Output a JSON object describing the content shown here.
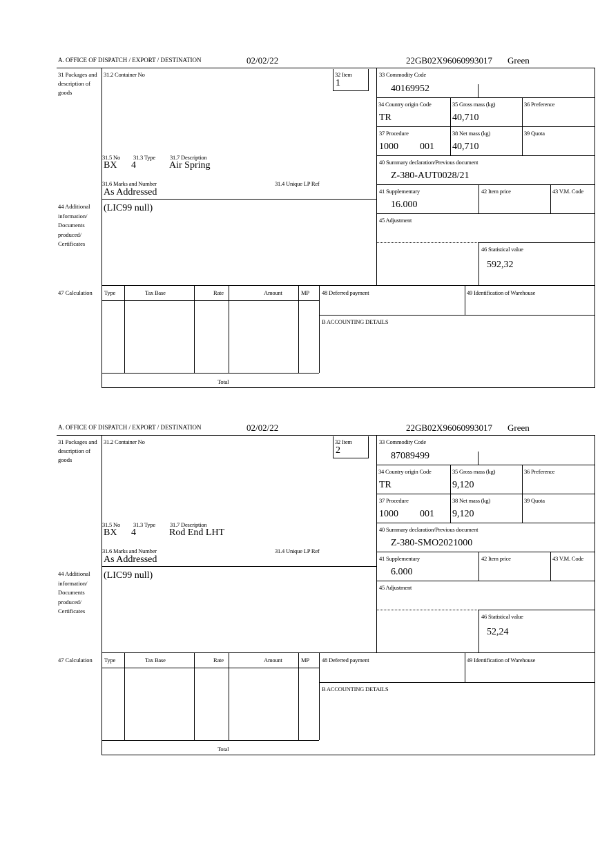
{
  "labels": {
    "office": "A. OFFICE OF DISPATCH / EXPORT / DESTINATION",
    "packages": "31 Packages and description of goods",
    "container": "31.2 Container No",
    "item": "32 Item",
    "no": "31.5 No",
    "type": "31.3 Type",
    "description": "31.7 Description",
    "marks": "31.6 Marks and Number",
    "unique_ref": "31.4 Unique LP Ref",
    "commodity": "33 Commodity Code",
    "country": "34 Country origin Code",
    "gross": "35 Gross mass (kg)",
    "preference": "36 Preference",
    "procedure": "37 Procedure",
    "net": "38 Net mass (kg)",
    "quota": "39 Quota",
    "summary": "40 Summary declaration/Previous document",
    "supplementary": "41 Supplementary",
    "item_price": "42 Item price",
    "vm_code": "43 V.M. Code",
    "additional": "44 Additional information/ Documents produced/ Certificates",
    "adjustment": "45 Adjustment",
    "statistical": "46 Statistical value",
    "calculation": "47 Calculation",
    "calc_type": "Type",
    "tax_base": "Tax Base",
    "rate": "Rate",
    "amount": "Amount",
    "mp": "MP",
    "deferred": "48 Deferred payment",
    "warehouse": "49 Identification of Warehouse",
    "accounting": "B ACCOUNTING DETAILS",
    "total": "Total"
  },
  "forms": [
    {
      "date": "02/02/22",
      "reference": "22GB02X96060993017",
      "route": "Green",
      "item": "1",
      "package_no": "BX",
      "package_type": "4",
      "description": "Air Spring",
      "marks": "As Addressed",
      "commodity_code": "40169952",
      "country_origin": "TR",
      "gross_mass": "40,710",
      "procedure": "1000",
      "procedure_additional": "001",
      "net_mass": "40,710",
      "previous_document": "Z-380-AUT0028/21",
      "supplementary": "16.000",
      "additional_info": "(LIC99 null)",
      "statistical_value": "592,32"
    },
    {
      "date": "02/02/22",
      "reference": "22GB02X96060993017",
      "route": "Green",
      "item": "2",
      "package_no": "BX",
      "package_type": "4",
      "description": "Rod End LHT",
      "marks": "As Addressed",
      "commodity_code": "87089499",
      "country_origin": "TR",
      "gross_mass": "9,120",
      "procedure": "1000",
      "procedure_additional": "001",
      "net_mass": "9,120",
      "previous_document": "Z-380-SMO2021000",
      "supplementary": "6.000",
      "additional_info": "(LIC99 null)",
      "statistical_value": "52,24"
    }
  ]
}
